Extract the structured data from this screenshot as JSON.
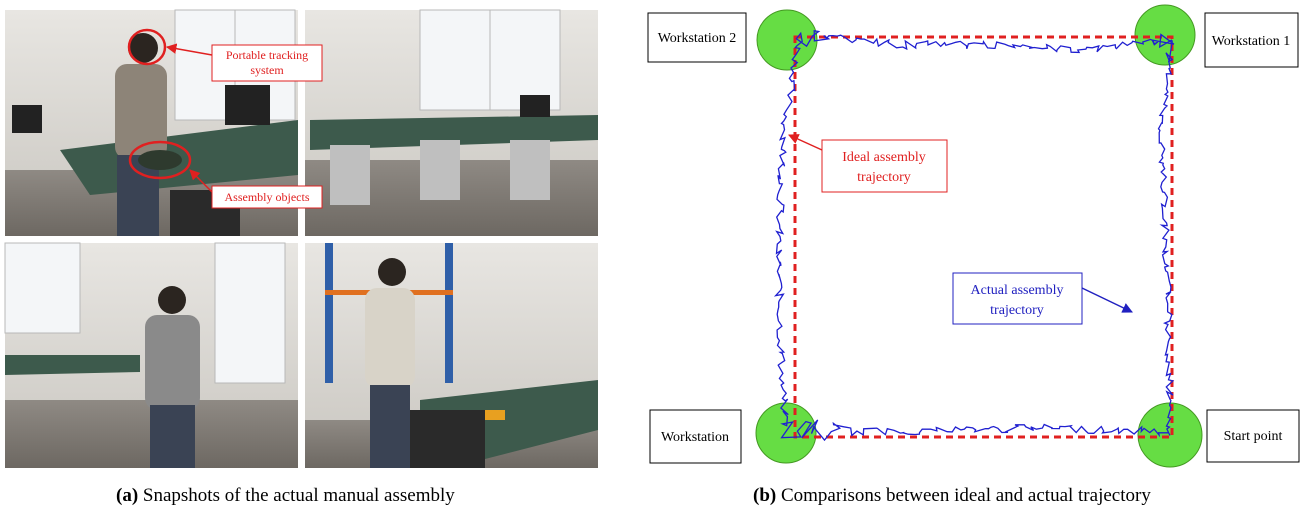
{
  "panel_a": {
    "label": "(a)",
    "caption": "Snapshots of the actual manual assembly",
    "annotations": [
      {
        "lines": [
          "Portable tracking",
          "system"
        ]
      },
      {
        "lines": [
          "Assembly objects"
        ]
      }
    ]
  },
  "panel_b": {
    "label": "(b)",
    "caption": "Comparisons between ideal and actual trajectory",
    "stations": {
      "workstation_2": "Workstation 2",
      "workstation_1": "Workstation 1",
      "workstation": "Workstation",
      "start": "Start point"
    },
    "ideal_label": [
      "Ideal assembly",
      "trajectory"
    ],
    "actual_label": [
      "Actual assembly",
      "trajectory"
    ]
  }
}
